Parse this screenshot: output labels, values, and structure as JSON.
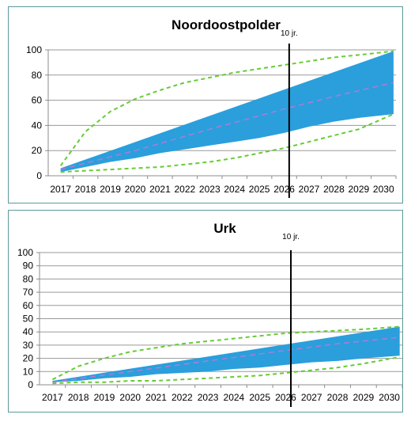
{
  "chart_data": [
    {
      "type": "area",
      "title": "Noordoostpolder",
      "xlabel": "",
      "ylabel": "",
      "categories": [
        "2017",
        "2018",
        "2019",
        "2020",
        "2021",
        "2022",
        "2023",
        "2024",
        "2025",
        "2026",
        "2027",
        "2028",
        "2029",
        "2030"
      ],
      "ylim": [
        0,
        100
      ],
      "yticks": [
        0,
        20,
        40,
        60,
        80,
        100
      ],
      "grid": true,
      "marker": {
        "label": "10 jr.",
        "x": 2026.2
      },
      "series": [
        {
          "role": "band_upper",
          "color": "#2a9fdc",
          "x": [
            2017.0,
            2030.4
          ],
          "values": [
            6,
            99
          ]
        },
        {
          "role": "band_lower",
          "color": "#2a9fdc",
          "x": [
            2017.0,
            2018.0,
            2019.0,
            2020.0,
            2021.0,
            2022.0,
            2023.0,
            2024.0,
            2025.0,
            2026.0,
            2027.0,
            2028.0,
            2029.0,
            2030.4
          ],
          "values": [
            3,
            7,
            11,
            14,
            18,
            21,
            24,
            27,
            30,
            34,
            39,
            43,
            46,
            49
          ]
        },
        {
          "role": "median",
          "color": "#b07ad9",
          "x": [
            2017.0,
            2020.0,
            2023.0,
            2026.0,
            2028.0,
            2030.4
          ],
          "values": [
            5,
            20,
            37,
            53,
            63,
            74
          ]
        },
        {
          "role": "envelope_upper",
          "color": "#66cc33",
          "x": [
            2017.0,
            2018.0,
            2019.0,
            2020.0,
            2021.0,
            2022.0,
            2023.0,
            2024.0,
            2025.0,
            2026.0,
            2027.0,
            2028.0,
            2029.0,
            2030.4
          ],
          "values": [
            8,
            35,
            51,
            61,
            68,
            74,
            78,
            82,
            85,
            88,
            91,
            94,
            96,
            99
          ]
        },
        {
          "role": "envelope_lower",
          "color": "#66cc33",
          "x": [
            2017.0,
            2018.0,
            2019.0,
            2020.0,
            2021.0,
            2022.0,
            2023.0,
            2024.0,
            2025.0,
            2026.0,
            2027.0,
            2028.0,
            2029.0,
            2030.4
          ],
          "values": [
            3,
            4,
            5,
            6,
            7,
            9,
            11,
            14,
            18,
            22,
            27,
            32,
            37,
            49
          ]
        }
      ]
    },
    {
      "type": "area",
      "title": "Urk",
      "xlabel": "",
      "ylabel": "",
      "categories": [
        "2017",
        "2018",
        "2019",
        "2020",
        "2021",
        "2022",
        "2023",
        "2024",
        "2025",
        "2026",
        "2027",
        "2028",
        "2029",
        "2030"
      ],
      "ylim": [
        0,
        100
      ],
      "yticks": [
        0,
        10,
        20,
        30,
        40,
        50,
        60,
        70,
        80,
        90,
        100
      ],
      "grid": true,
      "marker": {
        "label": "10 jr.",
        "x": 2026.2
      },
      "series": [
        {
          "role": "band_upper",
          "color": "#2a9fdc",
          "x": [
            2017.0,
            2030.4
          ],
          "values": [
            3,
            44
          ]
        },
        {
          "role": "band_lower",
          "color": "#2a9fdc",
          "x": [
            2017.0,
            2018.0,
            2019.0,
            2020.0,
            2021.0,
            2022.0,
            2023.0,
            2024.0,
            2025.0,
            2026.0,
            2027.0,
            2028.0,
            2029.0,
            2030.4
          ],
          "values": [
            2,
            3,
            5,
            6,
            8,
            9,
            10,
            12,
            13,
            15,
            17,
            18,
            20,
            22
          ]
        },
        {
          "role": "median",
          "color": "#b07ad9",
          "x": [
            2017.0,
            2020.0,
            2023.0,
            2026.0,
            2028.0,
            2030.4
          ],
          "values": [
            2,
            10,
            18,
            26,
            31,
            36
          ]
        },
        {
          "role": "envelope_upper",
          "color": "#66cc33",
          "x": [
            2017.0,
            2018.0,
            2019.0,
            2020.0,
            2021.0,
            2022.0,
            2023.0,
            2024.0,
            2025.0,
            2026.0,
            2027.0,
            2028.0,
            2029.0,
            2030.4
          ],
          "values": [
            4,
            14,
            20,
            25,
            28,
            31,
            33,
            35,
            37,
            39,
            40,
            41,
            42,
            44
          ]
        },
        {
          "role": "envelope_lower",
          "color": "#66cc33",
          "x": [
            2017.0,
            2018.0,
            2019.0,
            2020.0,
            2021.0,
            2022.0,
            2023.0,
            2024.0,
            2025.0,
            2026.0,
            2027.0,
            2028.0,
            2029.0,
            2030.4
          ],
          "values": [
            1,
            2,
            2,
            3,
            3,
            4,
            5,
            6,
            7,
            9,
            11,
            13,
            16,
            21
          ]
        }
      ]
    }
  ]
}
